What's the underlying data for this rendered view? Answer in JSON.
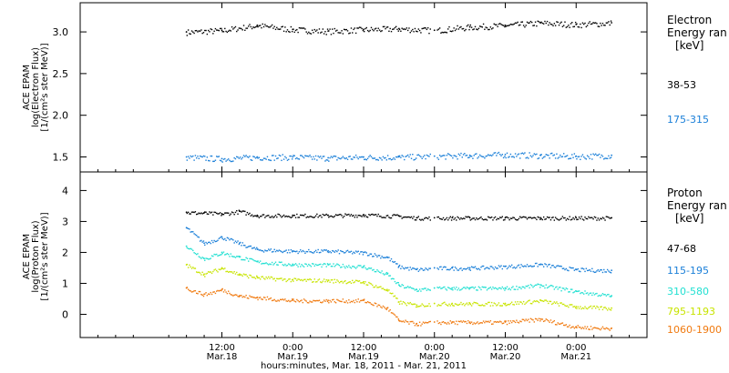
{
  "chart_data": [
    {
      "type": "scatter",
      "ylabel_lines": [
        "ACE EPAM",
        "log(Electron Flux)",
        "[1/(cm²s ster MeV)]"
      ],
      "yticks": [
        "1.5",
        "2.0",
        "2.5",
        "3.0"
      ],
      "ylim": [
        1.32,
        3.35
      ],
      "legend_title_lines": [
        "Electron",
        "Energy ran",
        "[keV]"
      ],
      "series": [
        {
          "name": "38-53",
          "color": "#000000",
          "x": [
            6,
            12,
            18,
            24,
            30,
            36,
            42,
            48,
            54,
            60,
            66,
            72,
            78
          ],
          "values": [
            3.0,
            3.02,
            3.08,
            3.03,
            3.01,
            3.03,
            3.04,
            3.02,
            3.06,
            3.08,
            3.11,
            3.09,
            3.11
          ]
        },
        {
          "name": "175-315",
          "color": "#1a7fd8",
          "x": [
            6,
            12,
            18,
            24,
            30,
            36,
            42,
            48,
            54,
            60,
            66,
            72,
            78
          ],
          "values": [
            1.5,
            1.48,
            1.5,
            1.5,
            1.49,
            1.5,
            1.5,
            1.51,
            1.52,
            1.53,
            1.52,
            1.51,
            1.52
          ]
        }
      ]
    },
    {
      "type": "scatter",
      "ylabel_lines": [
        "ACE EPAM",
        "log(Proton Flux)",
        "[1/(cm²s ster MeV)]"
      ],
      "yticks": [
        "0",
        "1",
        "2",
        "3",
        "4"
      ],
      "ylim": [
        -0.75,
        4.6
      ],
      "legend_title_lines": [
        "Proton",
        "Energy ran",
        "[keV]"
      ],
      "series": [
        {
          "name": "47-68",
          "color": "#000000",
          "x": [
            6,
            9,
            12,
            15,
            18,
            24,
            30,
            36,
            42,
            45,
            48,
            51,
            54,
            60,
            66,
            72,
            78
          ],
          "values": [
            3.3,
            3.28,
            3.25,
            3.33,
            3.2,
            3.2,
            3.2,
            3.22,
            3.18,
            3.12,
            3.12,
            3.12,
            3.12,
            3.12,
            3.12,
            3.12,
            3.12
          ]
        },
        {
          "name": "115-195",
          "color": "#1a7fd8",
          "x": [
            6,
            9,
            12,
            15,
            18,
            24,
            30,
            36,
            40,
            42,
            45,
            48,
            51,
            54,
            60,
            66,
            72,
            78
          ],
          "values": [
            2.8,
            2.3,
            2.5,
            2.3,
            2.1,
            2.05,
            2.05,
            2.0,
            1.85,
            1.55,
            1.45,
            1.5,
            1.5,
            1.5,
            1.55,
            1.62,
            1.45,
            1.42
          ]
        },
        {
          "name": "310-580",
          "color": "#22e0d2",
          "x": [
            6,
            9,
            12,
            15,
            18,
            24,
            30,
            36,
            40,
            42,
            45,
            48,
            51,
            54,
            60,
            66,
            72,
            78
          ],
          "values": [
            2.2,
            1.8,
            2.0,
            1.85,
            1.7,
            1.62,
            1.6,
            1.55,
            1.3,
            0.95,
            0.8,
            0.85,
            0.85,
            0.85,
            0.85,
            0.95,
            0.75,
            0.6
          ]
        },
        {
          "name": "795-1193",
          "color": "#c8e400",
          "x": [
            6,
            9,
            12,
            15,
            18,
            24,
            30,
            36,
            40,
            42,
            45,
            48,
            51,
            54,
            60,
            66,
            72,
            78
          ],
          "values": [
            1.6,
            1.3,
            1.5,
            1.3,
            1.2,
            1.12,
            1.1,
            1.05,
            0.8,
            0.4,
            0.3,
            0.35,
            0.35,
            0.35,
            0.35,
            0.45,
            0.25,
            0.2
          ]
        },
        {
          "name": "1060-1900",
          "color": "#f07a10",
          "x": [
            6,
            9,
            12,
            15,
            18,
            24,
            30,
            36,
            40,
            42,
            45,
            48,
            51,
            54,
            60,
            66,
            72,
            78
          ],
          "values": [
            0.85,
            0.65,
            0.8,
            0.6,
            0.55,
            0.45,
            0.45,
            0.45,
            0.2,
            -0.2,
            -0.3,
            -0.25,
            -0.25,
            -0.25,
            -0.25,
            -0.15,
            -0.4,
            -0.45
          ]
        }
      ]
    }
  ],
  "xaxis": {
    "xlim": [
      -12,
      84
    ],
    "ticks": [
      {
        "x": 12,
        "time": "12:00",
        "date": "Mar.18"
      },
      {
        "x": 24,
        "time": "0:00",
        "date": "Mar.19"
      },
      {
        "x": 36,
        "time": "12:00",
        "date": "Mar.19"
      },
      {
        "x": 48,
        "time": "0:00",
        "date": "Mar.20"
      },
      {
        "x": 60,
        "time": "12:00",
        "date": "Mar.20"
      },
      {
        "x": 72,
        "time": "0:00",
        "date": "Mar.21"
      }
    ],
    "xlabel": "hours:minutes, Mar. 18, 2011 - Mar. 21, 2011"
  }
}
